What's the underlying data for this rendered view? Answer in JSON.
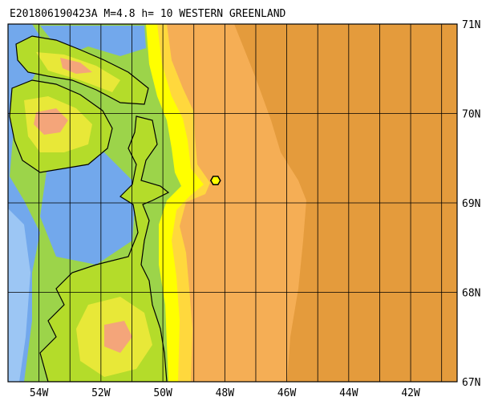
{
  "title": "E201806190423A M=4.8 h= 10 WESTERN GREENLAND",
  "map": {
    "lon_labels": [
      "54W",
      "52W",
      "50W",
      "48W",
      "46W",
      "44W",
      "42W"
    ],
    "lat_labels": [
      "71N",
      "70N",
      "69N",
      "68N",
      "67N"
    ],
    "lon_range": [
      -55,
      -40.5
    ],
    "lat_range": [
      67,
      71
    ],
    "grid_lon_step": 1,
    "grid_lat_step": 1,
    "epicenter": {
      "lon": -48.3,
      "lat": 69.25,
      "marker": "hexagon-icon",
      "color": "#ffff00"
    },
    "colors": {
      "deep_ocean": "#e49b3c",
      "mid_ocean": "#f5ae55",
      "shelf": "#ffd83d",
      "shallow": "#ffff00",
      "coastal_water": "#9cd44a",
      "lowland": "#b4dc2a",
      "upland": "#e8e838",
      "highland": "#f4a57a",
      "ice_sheet": "#72a8ec",
      "ice_sheet_light": "#9cc6f4",
      "coastline": "#000000",
      "grid": "#000000"
    }
  }
}
